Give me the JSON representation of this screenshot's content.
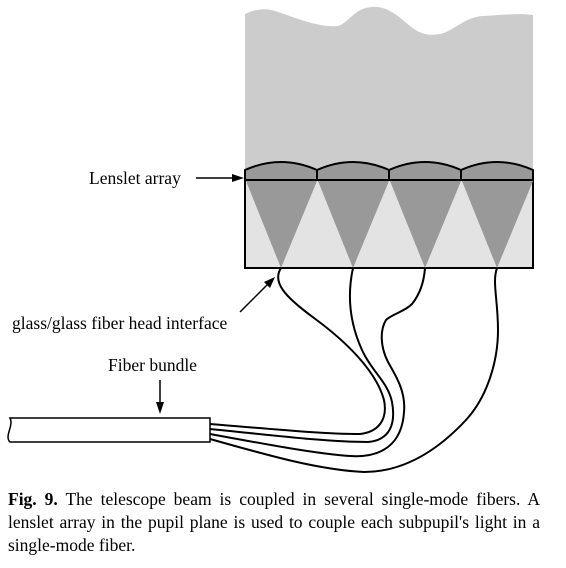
{
  "labels": {
    "lenslet_array": "Lenslet array",
    "interface": "glass/glass fiber head interface",
    "fiber_bundle": "Fiber bundle"
  },
  "caption": {
    "prefix": "Fig. 9.",
    "text": "The telescope beam is coupled in several single-mode fibers. A lenslet array in the pupil plane is used to couple each subpupil's light in a single-mode fiber."
  },
  "colors": {
    "beam": "#cccccc",
    "lens": "#999999",
    "cone": "#999999",
    "glass": "#e3e3e3",
    "ink": "#000000"
  }
}
